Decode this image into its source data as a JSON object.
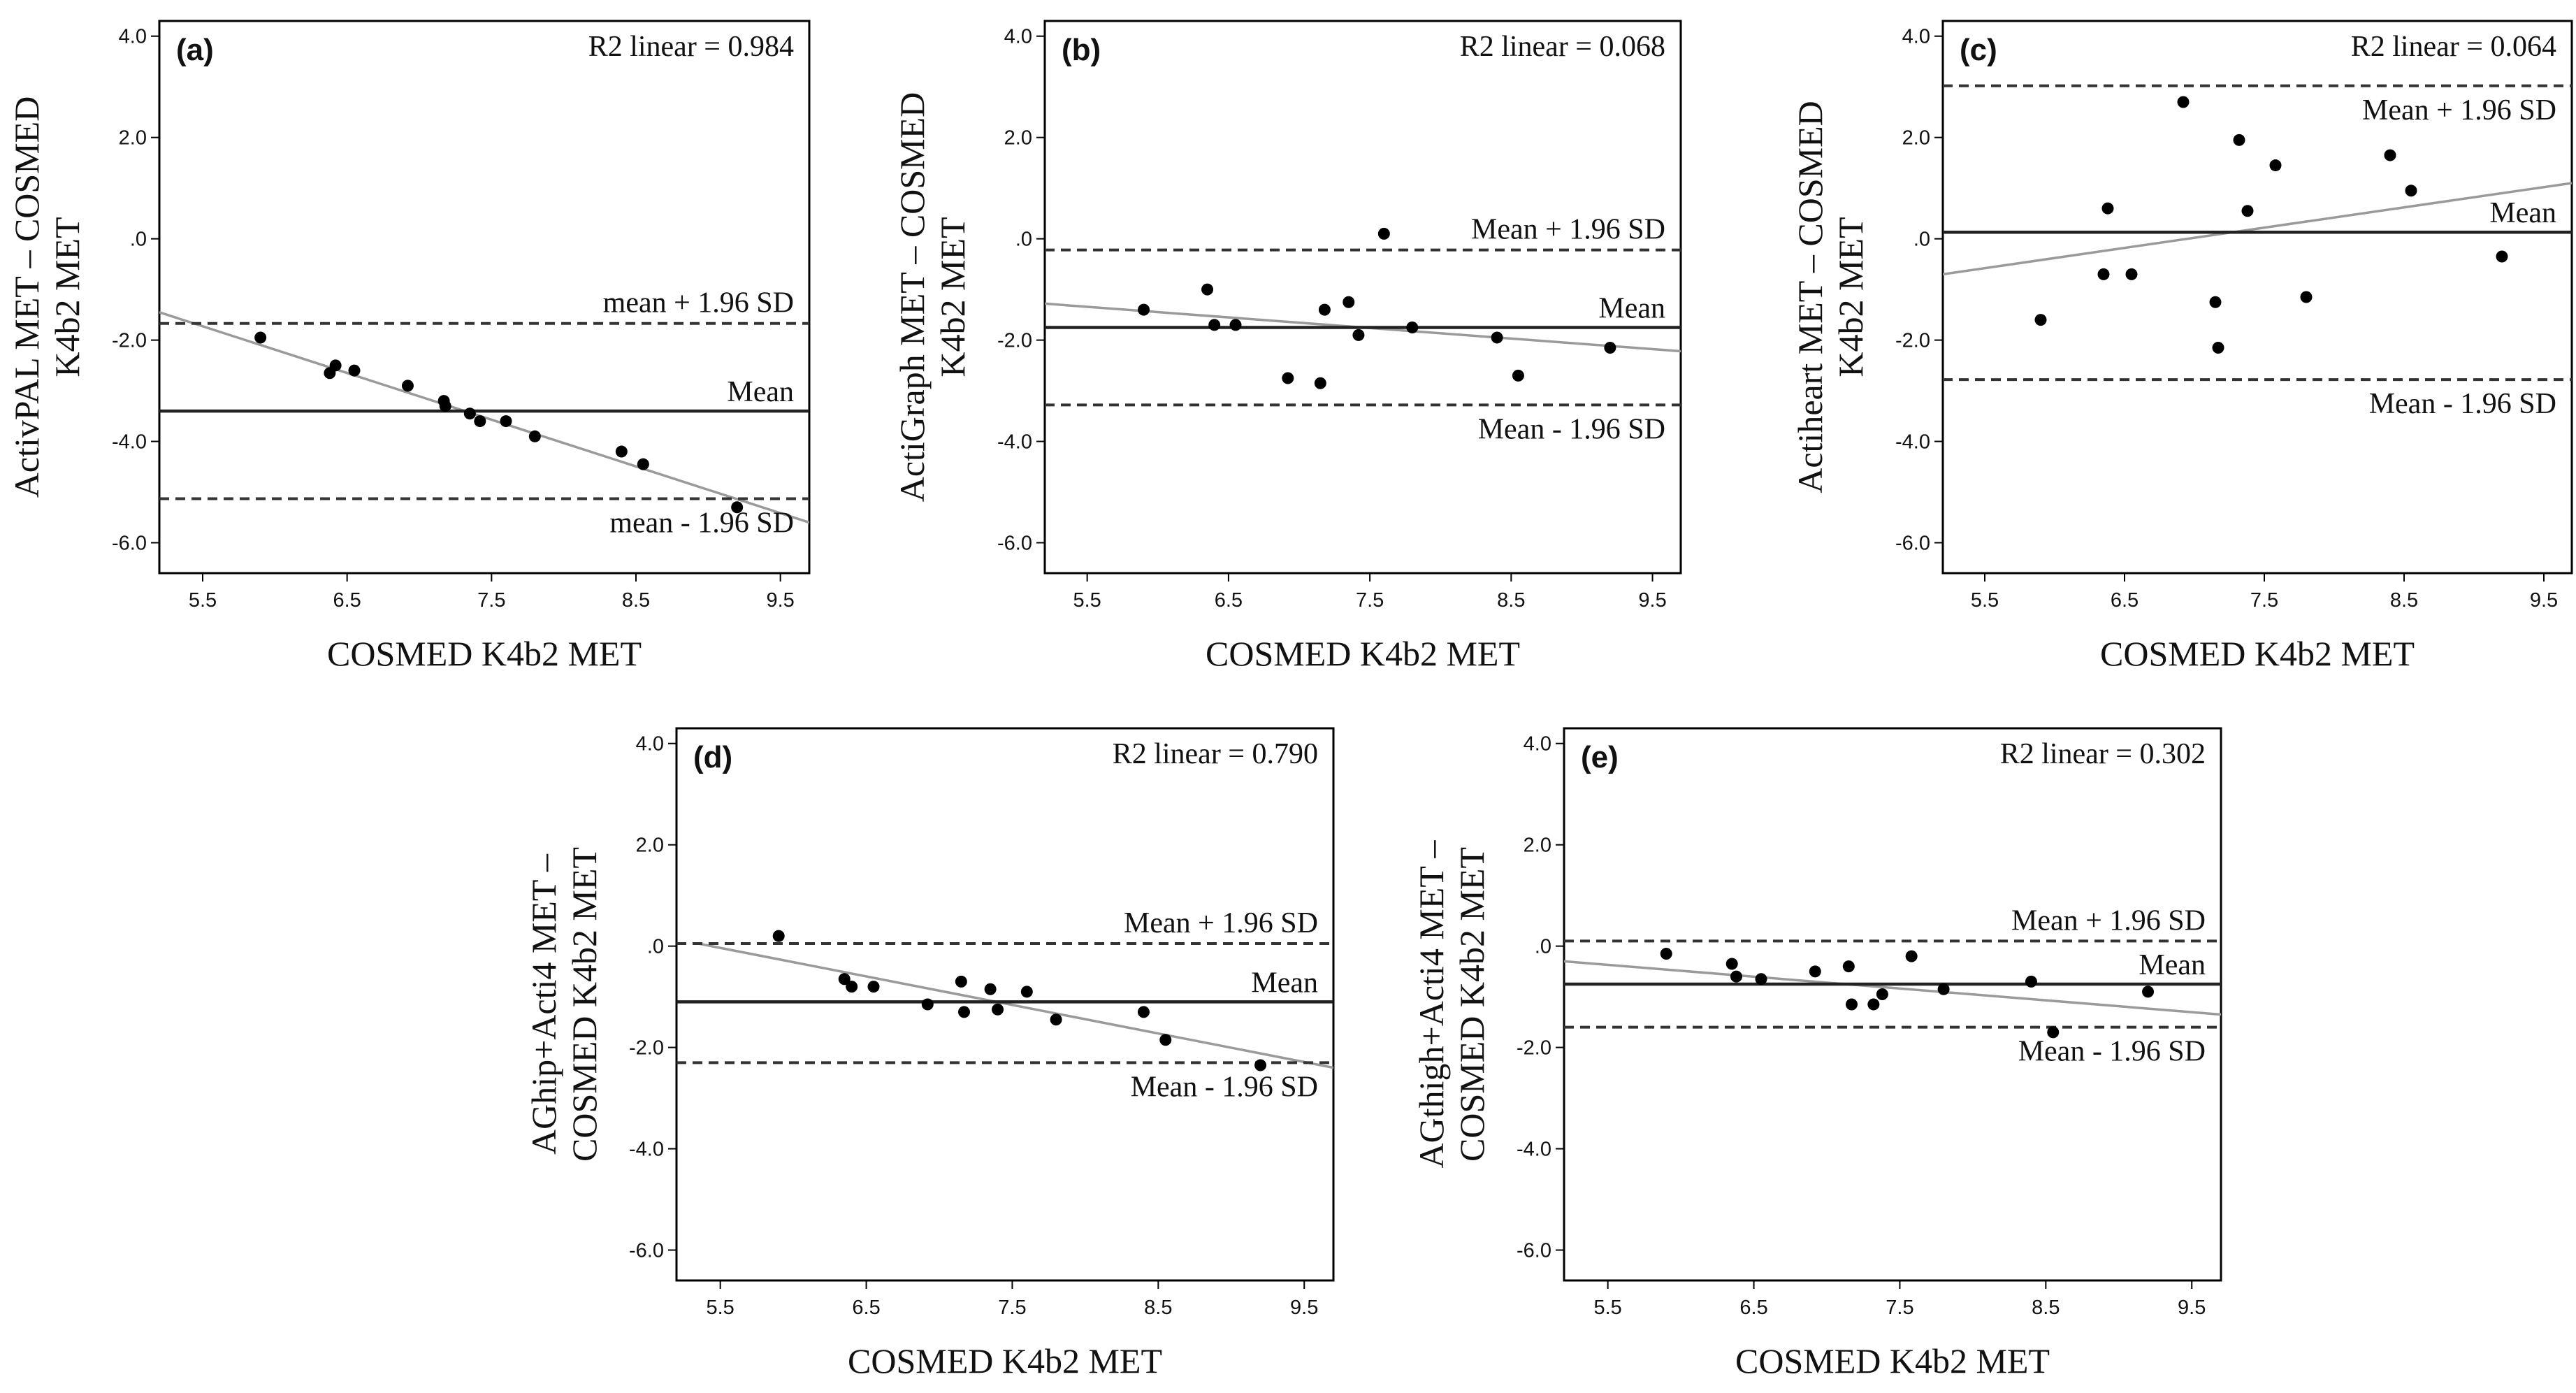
{
  "figure": {
    "colors": {
      "points": "#000000",
      "mean": "#222222",
      "limits": "#333333",
      "fit": "#9a9a9a",
      "axes": "#000000"
    }
  },
  "chart_data": [
    {
      "type": "scatter",
      "panel": "(a)",
      "r2_text": "R2 linear = 0.984",
      "xlabel": "COSMED K4b2 MET",
      "ylabel": [
        "ActivPAL MET – COSMED",
        "K4b2 MET"
      ],
      "xlim": [
        5.2,
        9.7
      ],
      "ylim": [
        -6.6,
        4.3
      ],
      "xticks": [
        5.5,
        6.5,
        7.5,
        8.5,
        9.5
      ],
      "xtick_labels": [
        "5.5",
        "6.5",
        "7.5",
        "8.5",
        "9.5"
      ],
      "yticks": [
        4,
        2,
        0,
        -2,
        -4,
        -6
      ],
      "ytick_labels": [
        "4.0",
        "2.0",
        ".0",
        "-2.0",
        "-4.0",
        "-6.0"
      ],
      "mean": -3.4,
      "upper": -1.67,
      "lower": -5.13,
      "mean_label": "Mean",
      "upper_label": "mean + 1.96 SD",
      "lower_label": "mean - 1.96 SD",
      "upper_label_below": false,
      "lower_label_below": true,
      "fit": [
        [
          5.2,
          -1.45
        ],
        [
          9.7,
          -5.6
        ]
      ],
      "x": [
        5.9,
        6.38,
        6.42,
        6.55,
        6.92,
        7.17,
        7.18,
        7.35,
        7.42,
        7.6,
        7.8,
        8.4,
        8.55,
        9.2
      ],
      "y": [
        -1.95,
        -2.65,
        -2.5,
        -2.6,
        -2.9,
        -3.2,
        -3.3,
        -3.45,
        -3.6,
        -3.6,
        -3.9,
        -4.2,
        -4.45,
        -5.3
      ]
    },
    {
      "type": "scatter",
      "panel": "(b)",
      "r2_text": "R2 linear = 0.068",
      "xlabel": "COSMED K4b2 MET",
      "ylabel": [
        "ActiGraph MET – COSMED",
        "K4b2 MET"
      ],
      "xlim": [
        5.2,
        9.7
      ],
      "ylim": [
        -6.6,
        4.3
      ],
      "xticks": [
        5.5,
        6.5,
        7.5,
        8.5,
        9.5
      ],
      "xtick_labels": [
        "5.5",
        "6.5",
        "7.5",
        "8.5",
        "9.5"
      ],
      "yticks": [
        4,
        2,
        0,
        -2,
        -4,
        -6
      ],
      "ytick_labels": [
        "4.0",
        "2.0",
        ".0",
        "-2.0",
        "-4.0",
        "-6.0"
      ],
      "mean": -1.75,
      "upper": -0.22,
      "lower": -3.28,
      "mean_label": "Mean",
      "upper_label": "Mean + 1.96 SD",
      "lower_label": "Mean - 1.96 SD",
      "upper_label_below": false,
      "lower_label_below": true,
      "fit": [
        [
          5.2,
          -1.28
        ],
        [
          9.7,
          -2.22
        ]
      ],
      "x": [
        5.9,
        6.35,
        6.4,
        6.55,
        6.92,
        7.15,
        7.18,
        7.35,
        7.42,
        7.6,
        7.8,
        8.4,
        8.55,
        9.2
      ],
      "y": [
        -1.4,
        -1.0,
        -1.7,
        -1.7,
        -2.75,
        -2.85,
        -1.4,
        -1.25,
        -1.9,
        0.1,
        -1.75,
        -1.95,
        -2.7,
        -2.15
      ]
    },
    {
      "type": "scatter",
      "panel": "(c)",
      "r2_text": "R2 linear = 0.064",
      "xlabel": "COSMED K4b2 MET",
      "ylabel": [
        "Actiheart MET – COSMED",
        "K4b2 MET"
      ],
      "xlim": [
        5.2,
        9.7
      ],
      "ylim": [
        -6.6,
        4.3
      ],
      "xticks": [
        5.5,
        6.5,
        7.5,
        8.5,
        9.5
      ],
      "xtick_labels": [
        "5.5",
        "6.5",
        "7.5",
        "8.5",
        "9.5"
      ],
      "yticks": [
        4,
        2,
        0,
        -2,
        -4,
        -6
      ],
      "ytick_labels": [
        "4.0",
        "2.0",
        ".0",
        "-2.0",
        "-4.0",
        "-6.0"
      ],
      "mean": 0.13,
      "upper": 3.02,
      "lower": -2.78,
      "mean_label": "Mean",
      "upper_label": "Mean + 1.96 SD",
      "lower_label": "Mean - 1.96 SD",
      "upper_label_below": true,
      "lower_label_below": true,
      "fit": [
        [
          5.2,
          -0.7
        ],
        [
          9.7,
          1.1
        ]
      ],
      "x": [
        5.9,
        6.35,
        6.38,
        6.55,
        6.92,
        7.15,
        7.17,
        7.32,
        7.38,
        7.58,
        7.8,
        8.4,
        8.55,
        9.2
      ],
      "y": [
        -1.6,
        -0.7,
        0.6,
        -0.7,
        2.7,
        -1.25,
        -2.15,
        1.95,
        0.55,
        1.45,
        -1.15,
        1.65,
        0.95,
        -0.35
      ]
    },
    {
      "type": "scatter",
      "panel": "(d)",
      "r2_text": "R2 linear = 0.790",
      "xlabel": "COSMED K4b2 MET",
      "ylabel": [
        "AGhip+Acti4  MET –",
        "COSMED K4b2 MET"
      ],
      "xlim": [
        5.2,
        9.7
      ],
      "ylim": [
        -6.6,
        4.3
      ],
      "xticks": [
        5.5,
        6.5,
        7.5,
        8.5,
        9.5
      ],
      "xtick_labels": [
        "5.5",
        "6.5",
        "7.5",
        "8.5",
        "9.5"
      ],
      "yticks": [
        4,
        2,
        0,
        -2,
        -4,
        -6
      ],
      "ytick_labels": [
        "4.0",
        "2.0",
        ".0",
        "-2.0",
        "-4.0",
        "-6.0"
      ],
      "mean": -1.1,
      "upper": 0.05,
      "lower": -2.3,
      "mean_label": "Mean",
      "upper_label": "Mean + 1.96 SD",
      "lower_label": "Mean - 1.96 SD",
      "upper_label_below": false,
      "lower_label_below": true,
      "fit": [
        [
          5.35,
          0.05
        ],
        [
          9.7,
          -2.4
        ]
      ],
      "x": [
        5.9,
        6.35,
        6.4,
        6.55,
        6.92,
        7.15,
        7.17,
        7.35,
        7.4,
        7.6,
        7.8,
        8.4,
        8.55,
        9.2
      ],
      "y": [
        0.2,
        -0.65,
        -0.8,
        -0.8,
        -1.15,
        -0.7,
        -1.3,
        -0.85,
        -1.25,
        -0.9,
        -1.45,
        -1.3,
        -1.85,
        -2.35
      ]
    },
    {
      "type": "scatter",
      "panel": "(e)",
      "r2_text": "R2 linear = 0.302",
      "xlabel": "COSMED K4b2 MET",
      "ylabel": [
        "AGthigh+Acti4  MET –",
        "COSMED K4b2 MET"
      ],
      "xlim": [
        5.2,
        9.7
      ],
      "ylim": [
        -6.6,
        4.3
      ],
      "xticks": [
        5.5,
        6.5,
        7.5,
        8.5,
        9.5
      ],
      "xtick_labels": [
        "5.5",
        "6.5",
        "7.5",
        "8.5",
        "9.5"
      ],
      "yticks": [
        4,
        2,
        0,
        -2,
        -4,
        -6
      ],
      "ytick_labels": [
        "4.0",
        "2.0",
        ".0",
        "-2.0",
        "-4.0",
        "-6.0"
      ],
      "mean": -0.75,
      "upper": 0.1,
      "lower": -1.6,
      "mean_label": "Mean",
      "upper_label": "Mean + 1.96 SD",
      "lower_label": "Mean - 1.96 SD",
      "upper_label_below": false,
      "lower_label_below": true,
      "fit": [
        [
          5.2,
          -0.3
        ],
        [
          9.7,
          -1.35
        ]
      ],
      "x": [
        5.9,
        6.35,
        6.38,
        6.55,
        6.92,
        7.15,
        7.17,
        7.32,
        7.38,
        7.58,
        7.8,
        8.4,
        8.55,
        9.2
      ],
      "y": [
        -0.15,
        -0.35,
        -0.6,
        -0.65,
        -0.5,
        -0.4,
        -1.15,
        -1.15,
        -0.95,
        -0.2,
        -0.85,
        -0.7,
        -1.7,
        -0.9
      ]
    }
  ]
}
